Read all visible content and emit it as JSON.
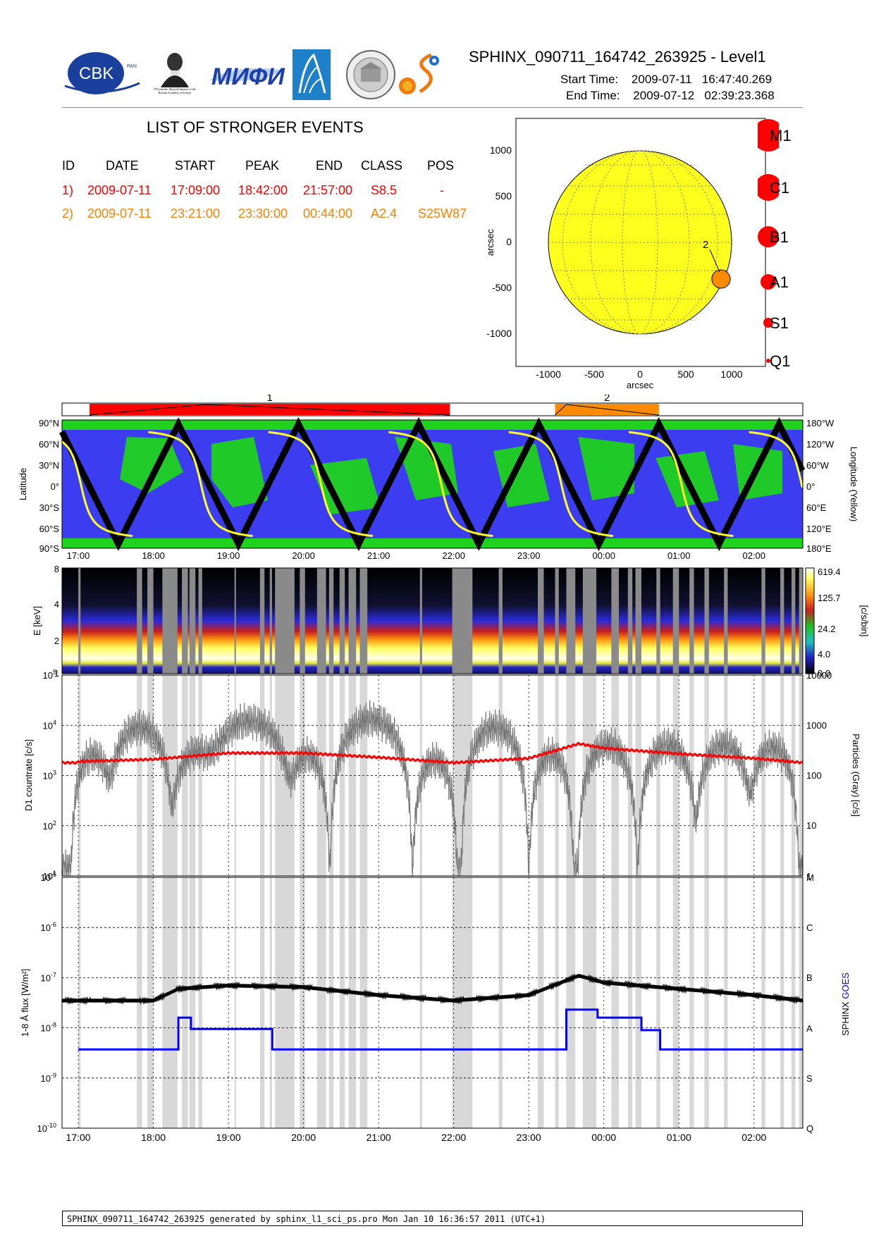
{
  "header": {
    "file_title": "SPHINX_090711_164742_263925 - Level1",
    "start_label": "Start Time:",
    "start_value": "2009-07-11   16:47:40.269",
    "end_label": "End Time:",
    "end_value": "2009-07-12   02:39:23.368",
    "logo_cbk": "CBK",
    "logo_cbk_sub": "PAN",
    "logo_lebedev": "P.N.Lebedev Physical Institute of the Russian Academy of Science",
    "logo_mifi": "МИФИ"
  },
  "events": {
    "title": "LIST OF STRONGER EVENTS",
    "columns": [
      "ID",
      "DATE",
      "START",
      "PEAK",
      "END",
      "CLASS",
      "POS"
    ],
    "rows": [
      {
        "id": "1)",
        "date": "2009-07-11",
        "start": "17:09:00",
        "peak": "18:42:00",
        "end": "21:57:00",
        "class": "S8.5",
        "pos": "-",
        "color": "#ff0000"
      },
      {
        "id": "2)",
        "date": "2009-07-11",
        "start": "23:21:00",
        "peak": "23:30:00",
        "end": "00:44:00",
        "class": "A2.4",
        "pos": "S25W87",
        "color": "#ff8000"
      }
    ]
  },
  "class_legend": [
    "M1",
    "C1",
    "B1",
    "A1",
    "S1",
    "Q1"
  ],
  "colors": {
    "event1": "#ff0000",
    "event2": "#ff8c00",
    "sun": "#ffff1e",
    "map_ocean": "#3c3cf0",
    "map_land": "#1ed21e",
    "goes": "#0000ff",
    "sphinx_curve": "#000000",
    "particles": "#787878",
    "counts": "#ff0000",
    "shading": "#d8d8d8"
  },
  "sun_map": {
    "xlabel": "arcsec",
    "ylabel": "arcsec",
    "xticks": [
      "-1000",
      "-500",
      "0",
      "500",
      "1000"
    ],
    "yticks": [
      "1000",
      "500",
      "0",
      "-500",
      "-1000"
    ],
    "event_label": "2"
  },
  "chart_data": [
    {
      "type": "timeline",
      "events": [
        {
          "label": "1",
          "start": "17:09",
          "peak": "18:42",
          "end": "21:57"
        },
        {
          "label": "2",
          "start": "23:21",
          "peak": "23:30",
          "end": "00:44"
        }
      ]
    },
    {
      "type": "line",
      "ylabel_left": "Latitude",
      "ylabel_right": "Longitude (Yellow)",
      "yticks_left": [
        "90°N",
        "60°N",
        "30°N",
        "0°",
        "30°S",
        "60°S",
        "90°S"
      ],
      "yticks_right": [
        "180°W",
        "120°W",
        "60°W",
        "0°",
        "60°E",
        "120°E",
        "180°E"
      ],
      "xticks": [
        "17:00",
        "18:00",
        "19:00",
        "20:00",
        "21:00",
        "22:00",
        "23:00",
        "00:00",
        "01:00",
        "02:00"
      ]
    },
    {
      "type": "heatmap",
      "ylabel": "E [keV]",
      "yticks": [
        "8",
        "4",
        "2",
        "1"
      ],
      "colorbar_label": "[c/s/bin]",
      "colorbar_ticks": [
        "619.4",
        "125.7",
        "24.2",
        "4.0",
        "0.0"
      ]
    },
    {
      "type": "line",
      "ylabel_left": "D1 countrate [c/s]",
      "ylabel_right": "Particles (Gray) [c/s]",
      "yticks_left": [
        "10",
        "10",
        "10",
        "10",
        "10"
      ],
      "yticks_left_exp": [
        "5",
        "4",
        "3",
        "2",
        "1"
      ],
      "yticks_right": [
        "10000",
        "1000",
        "100",
        "10",
        "1"
      ],
      "series": [
        {
          "x": [
            "17:00",
            "18:00",
            "19:00",
            "20:00",
            "21:00",
            "22:00",
            "23:00",
            "23:40",
            "00:00",
            "01:00",
            "02:00",
            "02:39"
          ],
          "values": [
            1900,
            2100,
            2800,
            2800,
            2300,
            1800,
            2200,
            4300,
            3500,
            2700,
            2200,
            1800
          ]
        }
      ]
    },
    {
      "type": "line",
      "ylabel_left": "1-8 Å flux [W/m²]",
      "ylabel_right_a": "SPHINX",
      "ylabel_right_b": "GOES",
      "yticks_left": [
        "10",
        "10",
        "10",
        "10",
        "10",
        "10"
      ],
      "yticks_left_exp": [
        "-5",
        "-6",
        "-7",
        "-8",
        "-9",
        "-10"
      ],
      "yticks_right": [
        "M",
        "C",
        "B",
        "A",
        "S",
        "Q"
      ],
      "xticks": [
        "17:00",
        "18:00",
        "19:00",
        "20:00",
        "21:00",
        "22:00",
        "23:00",
        "00:00",
        "01:00",
        "02:00"
      ],
      "series": [
        {
          "name": "SPHINX",
          "x": [
            "17:00",
            "18:00",
            "18:20",
            "19:00",
            "20:00",
            "21:00",
            "22:00",
            "23:00",
            "23:40",
            "00:00",
            "01:00",
            "02:00",
            "02:39"
          ],
          "values": [
            3.5e-08,
            3.5e-08,
            6e-08,
            7e-08,
            6.5e-08,
            4.5e-08,
            3.5e-08,
            4.5e-08,
            1.1e-07,
            8e-08,
            6e-08,
            4.5e-08,
            3.5e-08
          ]
        },
        {
          "name": "GOES",
          "x": [
            "17:00",
            "18:15",
            "18:20",
            "18:30",
            "19:30",
            "19:35",
            "23:20",
            "23:30",
            "23:55",
            "00:30",
            "00:45",
            "02:39"
          ],
          "values": [
            3.7e-09,
            3.7e-09,
            1.6e-08,
            9.5e-09,
            9.5e-09,
            3.7e-09,
            3.7e-09,
            2.3e-08,
            1.6e-08,
            9e-09,
            3.7e-09,
            3.7e-09
          ]
        }
      ]
    }
  ],
  "footer": "SPHINX_090711_164742_263925 generated by sphinx_l1_sci_ps.pro Mon Jan 10 16:36:57 2011 (UTC+1)"
}
